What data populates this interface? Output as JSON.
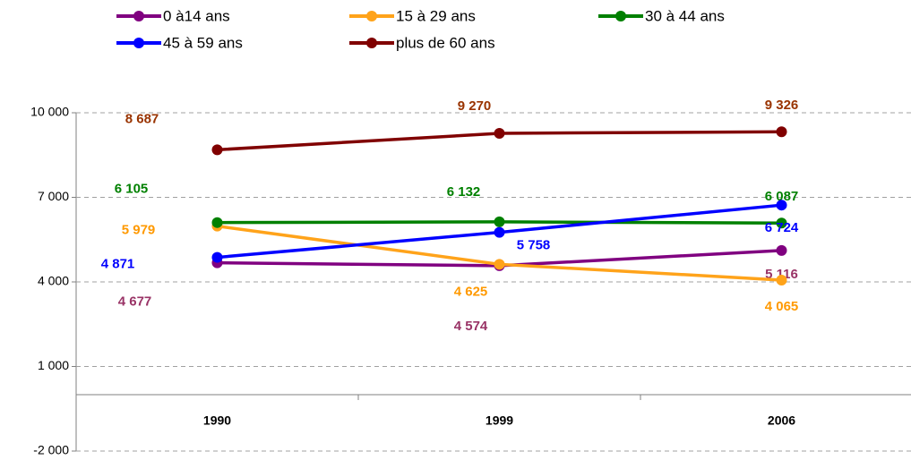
{
  "chart_data": {
    "type": "line",
    "categories": [
      "1990",
      "1999",
      "2006"
    ],
    "series": [
      {
        "name": "0 à14 ans",
        "color": "#800080",
        "values": [
          4677,
          4574,
          5116
        ],
        "value_labels": [
          "4 677",
          "4 574",
          "5 116"
        ]
      },
      {
        "name": "15 à 29 ans",
        "color": "#ffa31a",
        "values": [
          5979,
          4625,
          4065
        ],
        "value_labels": [
          "5 979",
          "4 625",
          "4 065"
        ]
      },
      {
        "name": "30 à 44 ans",
        "color": "#008000",
        "values": [
          6105,
          6132,
          6087
        ],
        "value_labels": [
          "6 105",
          "6 132",
          "6 087"
        ]
      },
      {
        "name": "45 à 59 ans",
        "color": "#0000ff",
        "values": [
          4871,
          5758,
          6724
        ],
        "value_labels": [
          "4 871",
          "5 758",
          "6 724"
        ]
      },
      {
        "name": "plus de 60 ans",
        "color": "#800000",
        "values": [
          8687,
          9270,
          9326
        ],
        "value_labels": [
          "8 687",
          "9 270",
          "9 326"
        ]
      }
    ],
    "ylim": [
      -2000,
      10000
    ],
    "yticks": [
      {
        "value": -2000,
        "label": "-2 000"
      },
      {
        "value": 1000,
        "label": "1 000"
      },
      {
        "value": 4000,
        "label": "4 000"
      },
      {
        "value": 7000,
        "label": "7 000"
      },
      {
        "value": 10000,
        "label": "10 000"
      }
    ],
    "grid": true
  }
}
